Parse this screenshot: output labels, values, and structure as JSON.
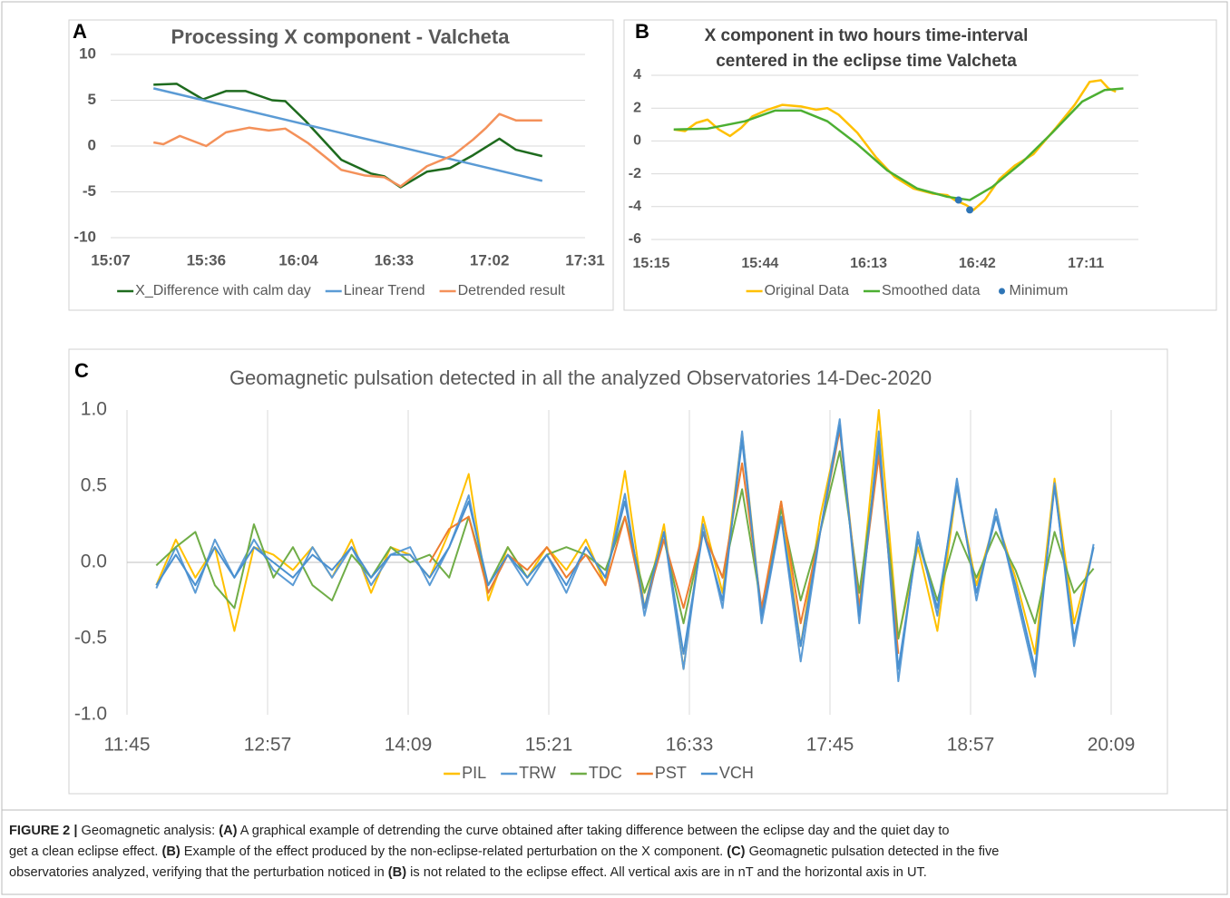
{
  "chart_data": [
    {
      "type": "line",
      "panel": "A",
      "title": [
        "Processing X component - Valcheta"
      ],
      "xlim": [
        907,
        1051
      ],
      "xticks": [
        {
          "value": 907,
          "label": "15:07"
        },
        {
          "value": 936,
          "label": "15:36"
        },
        {
          "value": 964,
          "label": "16:04"
        },
        {
          "value": 993,
          "label": "16:33"
        },
        {
          "value": 1022,
          "label": "17:02"
        },
        {
          "value": 1051,
          "label": "17:31"
        }
      ],
      "ylim": [
        -10,
        10
      ],
      "yticks": [
        10,
        5,
        0,
        -5,
        -10
      ],
      "grid": "y",
      "series": [
        {
          "name": "X_Difference with calm day",
          "color": "#1e6b1e",
          "x": [
            920,
            927,
            935,
            942,
            948,
            956,
            960,
            966,
            977,
            986,
            990,
            995,
            1003,
            1010,
            1017,
            1025,
            1030,
            1038
          ],
          "values": [
            6.7,
            6.8,
            5.1,
            6.0,
            6.0,
            5.0,
            4.9,
            2.8,
            -1.5,
            -3.0,
            -3.3,
            -4.5,
            -2.8,
            -2.4,
            -1.0,
            0.8,
            -0.4,
            -1.1
          ]
        },
        {
          "name": "Linear Trend",
          "color": "#5b9bd5",
          "x": [
            920,
            1038
          ],
          "values": [
            6.3,
            -3.8
          ]
        },
        {
          "name": "Detrended result",
          "color": "#f4915a",
          "x": [
            920,
            923,
            928,
            936,
            942,
            949,
            955,
            960,
            967,
            977,
            984,
            990,
            995,
            1003,
            1011,
            1017,
            1021,
            1025,
            1030,
            1038
          ],
          "values": [
            0.4,
            0.2,
            1.1,
            0.0,
            1.5,
            2.0,
            1.7,
            1.9,
            0.3,
            -2.6,
            -3.2,
            -3.4,
            -4.4,
            -2.2,
            -1.0,
            0.7,
            2.0,
            3.5,
            2.8,
            2.8
          ]
        }
      ]
    },
    {
      "type": "line",
      "panel": "B",
      "title": [
        "X component in two hours time-interval",
        "centered in the eclipse time Valcheta"
      ],
      "xlim": [
        915,
        1045
      ],
      "xticks": [
        {
          "value": 915,
          "label": "15:15"
        },
        {
          "value": 944,
          "label": "15:44"
        },
        {
          "value": 973,
          "label": "16:13"
        },
        {
          "value": 1002,
          "label": "16:42"
        },
        {
          "value": 1031,
          "label": "17:11"
        }
      ],
      "ylim": [
        -6,
        4
      ],
      "yticks": [
        4,
        2,
        0,
        -2,
        -4,
        -6
      ],
      "grid": "y",
      "series": [
        {
          "name": "Original Data",
          "color": "#ffc000",
          "x": [
            921,
            924,
            927,
            930,
            933,
            936,
            939,
            942,
            946,
            950,
            955,
            959,
            962,
            965,
            970,
            975,
            980,
            985,
            990,
            994,
            996,
            999,
            1001,
            1004,
            1008,
            1012,
            1017,
            1023,
            1028,
            1032,
            1035,
            1037,
            1039
          ],
          "values": [
            0.7,
            0.6,
            1.1,
            1.3,
            0.7,
            0.3,
            0.8,
            1.5,
            1.9,
            2.2,
            2.1,
            1.9,
            2.0,
            1.6,
            0.5,
            -1.0,
            -2.2,
            -2.9,
            -3.2,
            -3.3,
            -3.6,
            -3.9,
            -4.2,
            -3.6,
            -2.3,
            -1.5,
            -0.8,
            0.8,
            2.2,
            3.6,
            3.7,
            3.2,
            3.0
          ]
        },
        {
          "name": "Smoothed data",
          "color": "#4caf32",
          "x": [
            921,
            930,
            940,
            948,
            955,
            962,
            970,
            978,
            986,
            994,
            1000,
            1006,
            1014,
            1022,
            1030,
            1036,
            1041
          ],
          "values": [
            0.7,
            0.75,
            1.2,
            1.85,
            1.85,
            1.2,
            -0.2,
            -1.8,
            -2.9,
            -3.4,
            -3.6,
            -2.8,
            -1.3,
            0.5,
            2.4,
            3.1,
            3.2
          ]
        },
        {
          "name": "Minimum",
          "color": "#2e75b6",
          "marker": true,
          "x": [
            997,
            1000
          ],
          "values": [
            -3.6,
            -4.2
          ]
        }
      ]
    },
    {
      "type": "line",
      "panel": "C",
      "title": [
        "Geomagnetic pulsation detected in all the analyzed Observatories 14-Dec-2020"
      ],
      "xlim": [
        705,
        1209
      ],
      "xticks": [
        {
          "value": 705,
          "label": "11:45"
        },
        {
          "value": 777,
          "label": "12:57"
        },
        {
          "value": 849,
          "label": "14:09"
        },
        {
          "value": 921,
          "label": "15:21"
        },
        {
          "value": 993,
          "label": "16:33"
        },
        {
          "value": 1065,
          "label": "17:45"
        },
        {
          "value": 1137,
          "label": "18:57"
        },
        {
          "value": 1209,
          "label": "20:09"
        }
      ],
      "ylim": [
        -1,
        1
      ],
      "yticks": [
        {
          "value": 1,
          "label": "1.0"
        },
        {
          "value": 0.5,
          "label": "0.5"
        },
        {
          "value": 0,
          "label": "0.0"
        },
        {
          "value": -0.5,
          "label": "-0.5"
        },
        {
          "value": -1,
          "label": "-1.0"
        }
      ],
      "grid": "x",
      "x": [
        720,
        730,
        740,
        750,
        760,
        770,
        780,
        790,
        800,
        810,
        820,
        830,
        840,
        850,
        860,
        870,
        880,
        890,
        900,
        910,
        920,
        930,
        940,
        950,
        960,
        970,
        980,
        990,
        1000,
        1010,
        1020,
        1030,
        1040,
        1050,
        1060,
        1070,
        1080,
        1090,
        1100,
        1110,
        1120,
        1130,
        1140,
        1150,
        1160,
        1170,
        1180,
        1190,
        1200
      ],
      "series": [
        {
          "name": "PIL",
          "color": "#ffc000",
          "values": [
            -0.15,
            0.15,
            -0.1,
            0.1,
            -0.45,
            0.1,
            0.05,
            -0.05,
            0.1,
            -0.1,
            0.15,
            -0.2,
            0.1,
            0.05,
            -0.1,
            0.2,
            0.58,
            -0.25,
            0.1,
            -0.1,
            0.1,
            -0.05,
            0.15,
            -0.15,
            0.6,
            -0.3,
            0.25,
            -0.7,
            0.3,
            -0.2,
            0.85,
            -0.35,
            0.4,
            -0.55,
            0.3,
            0.9,
            -0.3,
            1.0,
            -0.5,
            0.1,
            -0.45,
            0.5,
            -0.15,
            0.3,
            -0.1,
            -0.6,
            0.55,
            -0.4,
            0.1
          ]
        },
        {
          "name": "TRW",
          "color": "#5b9bd5",
          "values": [
            -0.17,
            0.1,
            -0.2,
            0.15,
            -0.1,
            0.15,
            -0.05,
            -0.15,
            0.1,
            -0.1,
            0.1,
            -0.15,
            0.05,
            0.1,
            -0.15,
            0.1,
            0.44,
            -0.2,
            0.05,
            -0.15,
            0.05,
            -0.2,
            0.1,
            -0.1,
            0.45,
            -0.35,
            0.2,
            -0.7,
            0.25,
            -0.3,
            0.86,
            -0.4,
            0.3,
            -0.65,
            0.2,
            0.94,
            -0.4,
            0.86,
            -0.78,
            0.2,
            -0.35,
            0.55,
            -0.25,
            0.35,
            -0.2,
            -0.75,
            0.52,
            -0.55,
            0.12
          ]
        },
        {
          "name": "TDC",
          "color": "#70ad47",
          "values": [
            -0.02,
            0.1,
            0.2,
            -0.15,
            -0.3,
            0.25,
            -0.1,
            0.1,
            -0.15,
            -0.25,
            0.05,
            -0.1,
            0.1,
            0.0,
            0.05,
            -0.1,
            0.3,
            -0.15,
            0.1,
            -0.1,
            0.05,
            0.1,
            0.05,
            -0.05,
            0.3,
            -0.2,
            0.15,
            -0.4,
            0.2,
            -0.1,
            0.48,
            -0.3,
            0.35,
            -0.25,
            0.2,
            0.73,
            -0.2,
            0.73,
            -0.5,
            0.15,
            -0.25,
            0.2,
            -0.1,
            0.2,
            -0.05,
            -0.4,
            0.2,
            -0.2,
            -0.04
          ]
        },
        {
          "name": "PST",
          "color": "#ed7d31",
          "values": [
            null,
            null,
            null,
            null,
            null,
            null,
            null,
            null,
            null,
            null,
            null,
            null,
            null,
            null,
            0.0,
            0.22,
            0.3,
            -0.2,
            0.05,
            -0.05,
            0.1,
            -0.1,
            0.05,
            -0.15,
            0.3,
            -0.3,
            0.15,
            -0.3,
            0.2,
            -0.1,
            0.65,
            -0.3,
            0.4,
            -0.4,
            0.2,
            0.87,
            -0.3,
            0.7,
            -0.6,
            null,
            null,
            null,
            null,
            null,
            null,
            null,
            null,
            null,
            null
          ]
        },
        {
          "name": "VCH",
          "color": "#4a90d0",
          "values": [
            -0.15,
            0.05,
            -0.15,
            0.1,
            -0.1,
            0.1,
            0.0,
            -0.1,
            0.05,
            -0.05,
            0.1,
            -0.1,
            0.05,
            0.05,
            -0.1,
            0.1,
            0.4,
            -0.15,
            0.05,
            -0.1,
            0.05,
            -0.15,
            0.1,
            -0.1,
            0.4,
            -0.3,
            0.2,
            -0.6,
            0.2,
            -0.25,
            0.8,
            -0.35,
            0.3,
            -0.55,
            0.2,
            0.9,
            -0.35,
            0.8,
            -0.7,
            0.15,
            -0.3,
            0.5,
            -0.2,
            0.3,
            -0.15,
            -0.7,
            0.5,
            -0.5,
            0.1
          ]
        }
      ]
    }
  ],
  "caption": {
    "lines": [
      [
        {
          "text": "FIGURE 2 |",
          "bold": true
        },
        {
          "text": " Geomagnetic analysis: "
        },
        {
          "text": "(A)",
          "bold": true
        },
        {
          "text": " A graphical example of detrending the curve obtained after taking difference between the eclipse day and the quiet day to"
        }
      ],
      [
        {
          "text": "get a clean eclipse effect. "
        },
        {
          "text": "(B)",
          "bold": true
        },
        {
          "text": " Example of the effect produced by the non-eclipse-related perturbation on the X component. "
        },
        {
          "text": "(C)",
          "bold": true
        },
        {
          "text": " Geomagnetic pulsation detected in the five"
        }
      ],
      [
        {
          "text": "observatories analyzed, verifying that the perturbation noticed in "
        },
        {
          "text": "(B)",
          "bold": true
        },
        {
          "text": " is not related to the eclipse effect. All vertical axis are in nT and the horizontal axis in UT."
        }
      ]
    ]
  }
}
